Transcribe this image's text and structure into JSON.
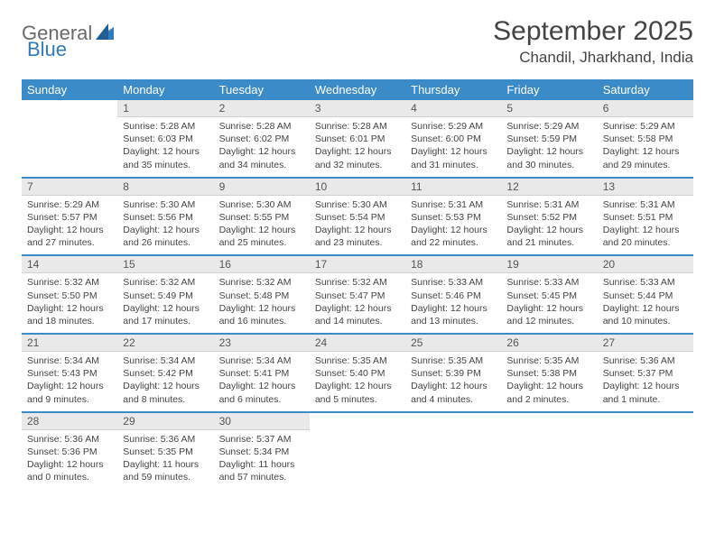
{
  "logo": {
    "text1": "General",
    "text2": "Blue"
  },
  "title": "September 2025",
  "location": "Chandil, Jharkhand, India",
  "colors": {
    "header_bg": "#3b8bc9",
    "header_text": "#ffffff",
    "daynum_bg": "#e9e9e9",
    "body_text": "#444444",
    "logo_gray": "#6a6a6a",
    "logo_blue": "#2f7bbf"
  },
  "day_headers": [
    "Sunday",
    "Monday",
    "Tuesday",
    "Wednesday",
    "Thursday",
    "Friday",
    "Saturday"
  ],
  "weeks": [
    [
      null,
      {
        "n": "1",
        "sr": "Sunrise: 5:28 AM",
        "ss": "Sunset: 6:03 PM",
        "dl": "Daylight: 12 hours and 35 minutes."
      },
      {
        "n": "2",
        "sr": "Sunrise: 5:28 AM",
        "ss": "Sunset: 6:02 PM",
        "dl": "Daylight: 12 hours and 34 minutes."
      },
      {
        "n": "3",
        "sr": "Sunrise: 5:28 AM",
        "ss": "Sunset: 6:01 PM",
        "dl": "Daylight: 12 hours and 32 minutes."
      },
      {
        "n": "4",
        "sr": "Sunrise: 5:29 AM",
        "ss": "Sunset: 6:00 PM",
        "dl": "Daylight: 12 hours and 31 minutes."
      },
      {
        "n": "5",
        "sr": "Sunrise: 5:29 AM",
        "ss": "Sunset: 5:59 PM",
        "dl": "Daylight: 12 hours and 30 minutes."
      },
      {
        "n": "6",
        "sr": "Sunrise: 5:29 AM",
        "ss": "Sunset: 5:58 PM",
        "dl": "Daylight: 12 hours and 29 minutes."
      }
    ],
    [
      {
        "n": "7",
        "sr": "Sunrise: 5:29 AM",
        "ss": "Sunset: 5:57 PM",
        "dl": "Daylight: 12 hours and 27 minutes."
      },
      {
        "n": "8",
        "sr": "Sunrise: 5:30 AM",
        "ss": "Sunset: 5:56 PM",
        "dl": "Daylight: 12 hours and 26 minutes."
      },
      {
        "n": "9",
        "sr": "Sunrise: 5:30 AM",
        "ss": "Sunset: 5:55 PM",
        "dl": "Daylight: 12 hours and 25 minutes."
      },
      {
        "n": "10",
        "sr": "Sunrise: 5:30 AM",
        "ss": "Sunset: 5:54 PM",
        "dl": "Daylight: 12 hours and 23 minutes."
      },
      {
        "n": "11",
        "sr": "Sunrise: 5:31 AM",
        "ss": "Sunset: 5:53 PM",
        "dl": "Daylight: 12 hours and 22 minutes."
      },
      {
        "n": "12",
        "sr": "Sunrise: 5:31 AM",
        "ss": "Sunset: 5:52 PM",
        "dl": "Daylight: 12 hours and 21 minutes."
      },
      {
        "n": "13",
        "sr": "Sunrise: 5:31 AM",
        "ss": "Sunset: 5:51 PM",
        "dl": "Daylight: 12 hours and 20 minutes."
      }
    ],
    [
      {
        "n": "14",
        "sr": "Sunrise: 5:32 AM",
        "ss": "Sunset: 5:50 PM",
        "dl": "Daylight: 12 hours and 18 minutes."
      },
      {
        "n": "15",
        "sr": "Sunrise: 5:32 AM",
        "ss": "Sunset: 5:49 PM",
        "dl": "Daylight: 12 hours and 17 minutes."
      },
      {
        "n": "16",
        "sr": "Sunrise: 5:32 AM",
        "ss": "Sunset: 5:48 PM",
        "dl": "Daylight: 12 hours and 16 minutes."
      },
      {
        "n": "17",
        "sr": "Sunrise: 5:32 AM",
        "ss": "Sunset: 5:47 PM",
        "dl": "Daylight: 12 hours and 14 minutes."
      },
      {
        "n": "18",
        "sr": "Sunrise: 5:33 AM",
        "ss": "Sunset: 5:46 PM",
        "dl": "Daylight: 12 hours and 13 minutes."
      },
      {
        "n": "19",
        "sr": "Sunrise: 5:33 AM",
        "ss": "Sunset: 5:45 PM",
        "dl": "Daylight: 12 hours and 12 minutes."
      },
      {
        "n": "20",
        "sr": "Sunrise: 5:33 AM",
        "ss": "Sunset: 5:44 PM",
        "dl": "Daylight: 12 hours and 10 minutes."
      }
    ],
    [
      {
        "n": "21",
        "sr": "Sunrise: 5:34 AM",
        "ss": "Sunset: 5:43 PM",
        "dl": "Daylight: 12 hours and 9 minutes."
      },
      {
        "n": "22",
        "sr": "Sunrise: 5:34 AM",
        "ss": "Sunset: 5:42 PM",
        "dl": "Daylight: 12 hours and 8 minutes."
      },
      {
        "n": "23",
        "sr": "Sunrise: 5:34 AM",
        "ss": "Sunset: 5:41 PM",
        "dl": "Daylight: 12 hours and 6 minutes."
      },
      {
        "n": "24",
        "sr": "Sunrise: 5:35 AM",
        "ss": "Sunset: 5:40 PM",
        "dl": "Daylight: 12 hours and 5 minutes."
      },
      {
        "n": "25",
        "sr": "Sunrise: 5:35 AM",
        "ss": "Sunset: 5:39 PM",
        "dl": "Daylight: 12 hours and 4 minutes."
      },
      {
        "n": "26",
        "sr": "Sunrise: 5:35 AM",
        "ss": "Sunset: 5:38 PM",
        "dl": "Daylight: 12 hours and 2 minutes."
      },
      {
        "n": "27",
        "sr": "Sunrise: 5:36 AM",
        "ss": "Sunset: 5:37 PM",
        "dl": "Daylight: 12 hours and 1 minute."
      }
    ],
    [
      {
        "n": "28",
        "sr": "Sunrise: 5:36 AM",
        "ss": "Sunset: 5:36 PM",
        "dl": "Daylight: 12 hours and 0 minutes."
      },
      {
        "n": "29",
        "sr": "Sunrise: 5:36 AM",
        "ss": "Sunset: 5:35 PM",
        "dl": "Daylight: 11 hours and 59 minutes."
      },
      {
        "n": "30",
        "sr": "Sunrise: 5:37 AM",
        "ss": "Sunset: 5:34 PM",
        "dl": "Daylight: 11 hours and 57 minutes."
      },
      null,
      null,
      null,
      null
    ]
  ]
}
